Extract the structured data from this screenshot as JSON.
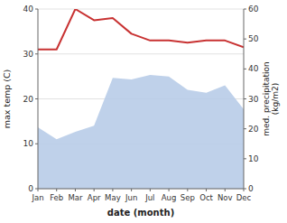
{
  "chart_data": {
    "type": "line",
    "categories": [
      "Jan",
      "Feb",
      "Mar",
      "Apr",
      "May",
      "Jun",
      "Jul",
      "Aug",
      "Sep",
      "Oct",
      "Nov",
      "Dec"
    ],
    "series": [
      {
        "type": "area",
        "axis": "y2",
        "color": "#b8cce8",
        "values": [
          20.5,
          16.5,
          19.0,
          21.0,
          37.0,
          36.5,
          38.0,
          37.5,
          33.0,
          32.0,
          34.5,
          26.5
        ]
      },
      {
        "type": "line",
        "color": "#c83232",
        "values": [
          31.0,
          31.0,
          40.0,
          37.5,
          38.0,
          34.5,
          33.0,
          33.0,
          32.5,
          33.0,
          33.0,
          31.5
        ]
      }
    ],
    "xlabel": "date (month)",
    "ylabel": "max temp (C)",
    "y2label": "med. precipitation\n(kg/m2)",
    "ylim": [
      0,
      40
    ],
    "yticks": [
      0,
      10,
      20,
      30,
      40
    ],
    "y2lim": [
      0,
      60
    ],
    "y2ticks": [
      0,
      10,
      20,
      30,
      40,
      50,
      60
    ],
    "grid": true
  }
}
